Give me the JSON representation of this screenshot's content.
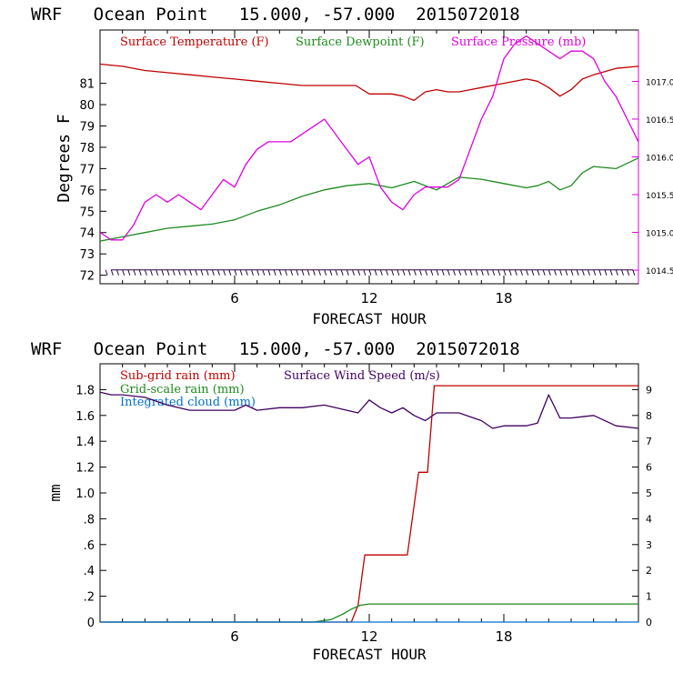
{
  "chart_data": [
    {
      "type": "line",
      "title": "WRF   Ocean Point   15.000, -57.000  2015072018",
      "xlabel": "FORECAST HOUR",
      "ylabel": "Degrees F",
      "xlim": [
        0,
        24
      ],
      "x_ticks": [
        "6",
        "12",
        "18"
      ],
      "ylim": [
        71.6,
        83.5
      ],
      "y_ticks": [
        "72",
        "73",
        "74",
        "75",
        "76",
        "77",
        "78",
        "79",
        "80",
        "81"
      ],
      "y2lim": [
        1014.32,
        1017.68
      ],
      "y2_ticks": [
        "1014.5",
        "1015.0",
        "1015.5",
        "1016.0",
        "1016.5",
        "1017.0"
      ],
      "legend_position": "top-left",
      "series": [
        {
          "name": "Surface Temperature (F)",
          "color": "#c00000",
          "axis": "left",
          "x": [
            0,
            1,
            2,
            3,
            4,
            5,
            6,
            7,
            8,
            9,
            10,
            11,
            11.4,
            12,
            13,
            13.5,
            14,
            14.5,
            15,
            15.5,
            16,
            17,
            18,
            19,
            19.5,
            20,
            20.5,
            21,
            21.5,
            22,
            23,
            24
          ],
          "y": [
            81.9,
            81.8,
            81.6,
            81.5,
            81.4,
            81.3,
            81.2,
            81.1,
            81.0,
            80.9,
            80.9,
            80.9,
            80.9,
            80.5,
            80.5,
            80.4,
            80.2,
            80.6,
            80.7,
            80.6,
            80.6,
            80.8,
            81.0,
            81.2,
            81.1,
            80.8,
            80.4,
            80.7,
            81.2,
            81.4,
            81.7,
            81.8
          ]
        },
        {
          "name": "Surface Dewpoint (F)",
          "color": "#1e8a1e",
          "axis": "left",
          "x": [
            0,
            1,
            2,
            3,
            4,
            5,
            6,
            7,
            8,
            9,
            10,
            11,
            12,
            13,
            14,
            15,
            16,
            17,
            18,
            19,
            19.5,
            20,
            20.5,
            21,
            21.5,
            22,
            23,
            24
          ],
          "y": [
            73.6,
            73.8,
            74.0,
            74.2,
            74.3,
            74.4,
            74.6,
            75.0,
            75.3,
            75.7,
            76.0,
            76.2,
            76.3,
            76.1,
            76.4,
            76.0,
            76.6,
            76.5,
            76.3,
            76.1,
            76.2,
            76.4,
            76.0,
            76.2,
            76.8,
            77.1,
            77.0,
            77.5
          ]
        },
        {
          "name": "Surface Pressure (mb)",
          "color": "#e000e0",
          "axis": "right",
          "x": [
            0,
            0.5,
            1,
            1.5,
            2,
            2.5,
            3,
            3.5,
            4,
            4.5,
            5,
            5.5,
            6,
            6.5,
            7,
            7.5,
            8,
            8.5,
            9,
            9.5,
            10,
            10.5,
            11,
            11.5,
            12,
            12.5,
            13,
            13.5,
            14,
            14.5,
            15,
            15.5,
            16,
            16.5,
            17,
            17.5,
            18,
            18.5,
            19,
            19.5,
            20,
            20.5,
            21,
            21.5,
            22,
            22.5,
            23,
            23.5,
            24
          ],
          "y": [
            1015.0,
            1014.9,
            1014.9,
            1015.1,
            1015.4,
            1015.5,
            1015.4,
            1015.5,
            1015.4,
            1015.3,
            1015.5,
            1015.7,
            1015.6,
            1015.9,
            1016.1,
            1016.2,
            1016.2,
            1016.2,
            1016.3,
            1016.4,
            1016.5,
            1016.3,
            1016.1,
            1015.9,
            1016.0,
            1015.6,
            1015.4,
            1015.3,
            1015.5,
            1015.6,
            1015.6,
            1015.6,
            1015.7,
            1016.1,
            1016.5,
            1016.8,
            1017.3,
            1017.5,
            1017.6,
            1017.5,
            1017.4,
            1017.3,
            1017.4,
            1017.4,
            1017.3,
            1017.0,
            1016.8,
            1016.5,
            1016.2
          ]
        }
      ]
    },
    {
      "type": "line",
      "title": "WRF   Ocean Point   15.000, -57.000  2015072018",
      "xlabel": "FORECAST HOUR",
      "ylabel": "mm",
      "xlim": [
        0,
        24
      ],
      "x_ticks": [
        "6",
        "12",
        "18"
      ],
      "ylim": [
        0,
        2.0
      ],
      "y_ticks": [
        "0",
        ".2",
        ".4",
        ".6",
        ".8",
        "1.0",
        "1.2",
        "1.4",
        "1.6",
        "1.8"
      ],
      "y2lim": [
        0,
        10
      ],
      "y2_ticks": [
        "0",
        "1",
        "2",
        "3",
        "4",
        "5",
        "6",
        "7",
        "8",
        "9"
      ],
      "legend_position": "top-left",
      "series": [
        {
          "name": "Sub-grid rain (mm)",
          "color": "#c00000",
          "axis": "left",
          "step": true,
          "x": [
            0,
            11.2,
            11.5,
            11.8,
            13.7,
            14.2,
            14.6,
            14.9,
            24
          ],
          "y": [
            0,
            0,
            0.13,
            0.52,
            0.52,
            1.16,
            1.16,
            1.83,
            1.83
          ]
        },
        {
          "name": "Grid-scale rain (mm)",
          "color": "#1e8a1e",
          "axis": "left",
          "x": [
            0,
            9.5,
            10.3,
            10.8,
            11.2,
            11.6,
            12.0,
            24
          ],
          "y": [
            0,
            0,
            0.02,
            0.06,
            0.1,
            0.13,
            0.14,
            0.14
          ]
        },
        {
          "name": "Integrated cloud (mm)",
          "color": "#0070d0",
          "axis": "left",
          "x": [
            0,
            24
          ],
          "y": [
            0,
            0
          ]
        },
        {
          "name": "Surface Wind Speed (m/s)",
          "color": "#400060",
          "axis": "right",
          "x": [
            0,
            0.5,
            1,
            2,
            3,
            4,
            5,
            6,
            6.5,
            7,
            8,
            9,
            10,
            11,
            11.5,
            12,
            12.5,
            13,
            13.5,
            14,
            14.5,
            15,
            15.5,
            16,
            17,
            17.5,
            18,
            19,
            19.5,
            20,
            20.5,
            21,
            22,
            23,
            24
          ],
          "y": [
            8.9,
            8.8,
            8.8,
            8.7,
            8.4,
            8.2,
            8.2,
            8.2,
            8.4,
            8.2,
            8.3,
            8.3,
            8.4,
            8.2,
            8.1,
            8.6,
            8.3,
            8.1,
            8.3,
            8.0,
            7.8,
            8.1,
            8.1,
            8.1,
            7.8,
            7.5,
            7.6,
            7.6,
            7.7,
            8.8,
            7.9,
            7.9,
            8.0,
            7.6,
            7.5
          ]
        }
      ]
    }
  ]
}
